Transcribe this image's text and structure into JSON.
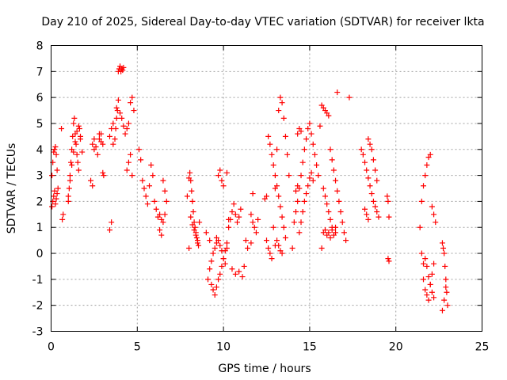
{
  "chart_data": {
    "type": "scatter",
    "title": "Day 210 of 2025, Sidereal Day-to-day VTEC variation (SDTVAR) for receiver lkta",
    "xlabel": "GPS time / hours",
    "ylabel": "SDTVAR / TECUs",
    "xlim": [
      0,
      25
    ],
    "ylim": [
      -3,
      8
    ],
    "xticks": [
      "0",
      "5",
      "10",
      "15",
      "20",
      "25"
    ],
    "yticks": [
      "-3",
      "-2",
      "-1",
      "0",
      "1",
      "2",
      "3",
      "4",
      "5",
      "6",
      "7",
      "8"
    ],
    "grid": true,
    "marker": "plus",
    "color": "#ff0000",
    "series": [
      {
        "name": "SDTVAR",
        "x": [
          0.05,
          0.1,
          0.15,
          0.2,
          0.25,
          0.3,
          0.35,
          0.05,
          0.1,
          0.15,
          0.2,
          0.25,
          0.3,
          0.35,
          0.4,
          0.6,
          0.7,
          0.65,
          1.0,
          1.05,
          1.1,
          1.15,
          1.2,
          1.25,
          1.3,
          1.35,
          1.4,
          1.45,
          1.5,
          1.55,
          1.6,
          1.65,
          1.7,
          1.0,
          1.1,
          1.2,
          1.3,
          1.4,
          1.5,
          1.6,
          1.7,
          1.8,
          2.3,
          2.4,
          2.5,
          2.6,
          2.7,
          2.8,
          2.9,
          3.0,
          3.05,
          2.4,
          2.5,
          2.8,
          2.9,
          3.0,
          3.4,
          3.5,
          3.6,
          3.4,
          3.5,
          3.6,
          3.7,
          3.75,
          3.8,
          3.85,
          3.9,
          3.95,
          4.0,
          4.05,
          4.1,
          4.15,
          4.2,
          3.8,
          3.9,
          4.0,
          4.1,
          4.2,
          4.3,
          4.4,
          4.5,
          4.6,
          4.7,
          4.8,
          4.4,
          4.5,
          4.6,
          4.7,
          5.1,
          5.2,
          5.3,
          5.4,
          5.5,
          5.6,
          5.7,
          5.8,
          5.9,
          6.0,
          6.1,
          6.2,
          6.3,
          6.4,
          6.5,
          6.6,
          6.7,
          6.3,
          6.4,
          6.5,
          6.6,
          7.9,
          8.0,
          8.05,
          8.1,
          8.15,
          8.2,
          8.25,
          8.3,
          8.35,
          8.4,
          8.45,
          8.5,
          8.55,
          8.0,
          8.1,
          8.2,
          8.3,
          8.4,
          8.5,
          8.6,
          9.0,
          9.1,
          9.2,
          9.3,
          9.4,
          9.5,
          9.6,
          9.7,
          9.8,
          9.9,
          10.0,
          10.1,
          10.2,
          9.2,
          9.3,
          9.4,
          9.5,
          9.6,
          9.7,
          9.8,
          9.9,
          10.0,
          10.1,
          10.2,
          9.6,
          9.7,
          9.8,
          9.9,
          10.0,
          10.2,
          10.3,
          10.4,
          10.5,
          10.6,
          10.7,
          10.8,
          10.9,
          11.0,
          10.3,
          10.5,
          10.7,
          10.9,
          11.1,
          11.2,
          11.3,
          11.4,
          11.6,
          11.7,
          11.8,
          11.9,
          12.0,
          11.6,
          11.7,
          12.4,
          12.5,
          12.6,
          12.7,
          12.8,
          12.9,
          13.0,
          13.1,
          13.2,
          13.3,
          13.4,
          13.5,
          13.6,
          13.7,
          13.8,
          12.5,
          12.6,
          12.7,
          12.8,
          12.9,
          13.0,
          13.1,
          13.2,
          13.3,
          13.4,
          13.5,
          13.6,
          13.0,
          13.1,
          13.2,
          13.3,
          13.4,
          14.0,
          14.1,
          14.2,
          14.3,
          14.4,
          14.5,
          14.6,
          14.7,
          14.8,
          14.9,
          15.0,
          15.1,
          15.2,
          15.3,
          15.4,
          15.5,
          14.3,
          14.4,
          14.5,
          14.6,
          14.7,
          14.8,
          14.9,
          15.0,
          15.1,
          15.2,
          14.2,
          14.3,
          14.4,
          14.5,
          15.6,
          15.7,
          15.8,
          15.9,
          16.0,
          16.1,
          16.2,
          16.3,
          16.4,
          16.5,
          16.6,
          16.7,
          16.8,
          16.9,
          17.0,
          17.1,
          15.7,
          15.8,
          15.9,
          16.0,
          16.1,
          16.2,
          16.3,
          15.8,
          15.9,
          16.0,
          16.1,
          16.2,
          16.3,
          16.4,
          16.5,
          16.5,
          16.6,
          17.3,
          18.0,
          18.1,
          18.2,
          18.3,
          18.4,
          18.5,
          18.6,
          18.7,
          18.8,
          18.9,
          19.0,
          18.4,
          18.5,
          18.6,
          18.7,
          18.8,
          18.9,
          18.2,
          18.3,
          18.4,
          19.5,
          19.55,
          19.6,
          19.55,
          19.6,
          21.4,
          21.5,
          21.6,
          21.7,
          21.8,
          21.9,
          22.0,
          22.1,
          22.2,
          21.5,
          21.6,
          21.7,
          21.8,
          21.9,
          22.0,
          22.1,
          22.2,
          22.3,
          21.6,
          21.7,
          21.8,
          21.9,
          22.0,
          22.1,
          22.2,
          22.7,
          22.75,
          22.8,
          22.85,
          22.9,
          22.95,
          23.0,
          22.7,
          22.8,
          22.9
        ],
        "y": [
          1.8,
          2.0,
          2.2,
          2.4,
          1.9,
          2.1,
          2.3,
          3.0,
          3.5,
          3.9,
          4.0,
          4.1,
          3.8,
          3.2,
          2.5,
          4.8,
          1.5,
          1.3,
          2.0,
          2.5,
          3.0,
          3.5,
          4.0,
          4.5,
          5.0,
          5.2,
          4.6,
          4.2,
          3.8,
          3.5,
          3.2,
          4.8,
          4.5,
          2.2,
          2.8,
          3.4,
          3.9,
          4.3,
          4.7,
          4.9,
          4.4,
          3.9,
          2.8,
          2.6,
          4.4,
          4.1,
          3.8,
          4.6,
          4.3,
          3.1,
          3.0,
          4.2,
          4.0,
          4.4,
          4.6,
          4.2,
          4.5,
          4.8,
          5.0,
          0.9,
          1.2,
          4.2,
          4.4,
          4.8,
          5.2,
          5.5,
          7.0,
          7.1,
          7.2,
          7.0,
          7.1,
          7.05,
          7.15,
          5.6,
          5.9,
          5.4,
          5.2,
          4.9,
          4.6,
          4.8,
          5.0,
          5.8,
          6.0,
          5.5,
          3.2,
          3.5,
          3.8,
          3.0,
          4.0,
          3.6,
          2.8,
          2.5,
          2.2,
          1.9,
          2.6,
          3.4,
          3.0,
          2.0,
          1.7,
          1.4,
          0.9,
          0.7,
          2.8,
          2.4,
          2.0,
          1.5,
          1.3,
          1.2,
          1.5,
          2.2,
          2.9,
          3.1,
          2.8,
          2.4,
          2.0,
          1.6,
          1.2,
          1.0,
          0.8,
          0.6,
          0.4,
          0.3,
          0.2,
          1.4,
          1.1,
          0.9,
          0.7,
          0.5,
          1.2,
          0.8,
          -1.0,
          -0.6,
          -0.3,
          0.0,
          0.2,
          0.4,
          0.5,
          0.3,
          0.1,
          -0.2,
          -0.4,
          0.2,
          0.5,
          -1.2,
          -1.4,
          -1.6,
          -1.3,
          -1.0,
          -0.8,
          -0.5,
          -0.2,
          0.1,
          0.4,
          0.6,
          3.0,
          3.2,
          2.8,
          2.6,
          3.1,
          1.0,
          1.3,
          1.6,
          1.9,
          1.5,
          1.2,
          1.4,
          1.7,
          1.3,
          -0.6,
          -0.8,
          -0.7,
          -0.9,
          -0.5,
          0.5,
          0.2,
          0.4,
          1.2,
          1.0,
          0.8,
          1.3,
          1.5,
          2.3,
          2.1,
          0.5,
          0.2,
          0.0,
          -0.2,
          1.0,
          2.5,
          4.0,
          5.5,
          6.0,
          5.8,
          5.2,
          4.5,
          3.8,
          3.0,
          2.2,
          4.5,
          4.2,
          3.8,
          3.4,
          3.0,
          2.6,
          2.2,
          1.8,
          1.4,
          1.0,
          0.6,
          0.3,
          0.5,
          0.3,
          0.1,
          0.0,
          0.2,
          1.2,
          1.6,
          2.0,
          2.5,
          3.0,
          3.5,
          4.0,
          4.4,
          4.8,
          5.0,
          4.6,
          4.2,
          3.8,
          3.4,
          3.0,
          2.6,
          0.8,
          1.2,
          1.6,
          2.0,
          2.3,
          2.6,
          2.9,
          3.1,
          2.8,
          2.4,
          4.6,
          4.8,
          4.7,
          4.9,
          5.7,
          5.6,
          5.5,
          5.4,
          5.3,
          4.0,
          3.6,
          3.2,
          2.8,
          2.4,
          2.0,
          1.6,
          1.2,
          0.8,
          0.5,
          0.2,
          2.5,
          2.2,
          1.9,
          1.6,
          1.3,
          1.0,
          0.8,
          0.9,
          0.7,
          0.8,
          0.6,
          0.9,
          0.7,
          0.8,
          1.0,
          6.2,
          6.0,
          4.0,
          3.8,
          3.5,
          3.2,
          2.9,
          2.6,
          2.3,
          2.0,
          1.8,
          1.6,
          1.4,
          4.4,
          4.2,
          4.0,
          3.6,
          3.2,
          2.8,
          1.7,
          1.5,
          1.3,
          2.2,
          2.0,
          1.4,
          -0.2,
          -0.3,
          1.0,
          0.0,
          -1.0,
          -1.4,
          -1.6,
          -1.8,
          -1.2,
          -0.8,
          -0.4,
          2.0,
          2.6,
          3.0,
          3.4,
          3.7,
          3.8,
          1.8,
          1.5,
          1.2,
          -0.4,
          -0.2,
          -0.5,
          -0.9,
          -1.2,
          -1.5,
          -1.7,
          0.4,
          0.2,
          0.0,
          -0.5,
          -1.0,
          -1.5,
          -2.0,
          -2.2,
          -1.8,
          -1.3
        ]
      }
    ]
  }
}
